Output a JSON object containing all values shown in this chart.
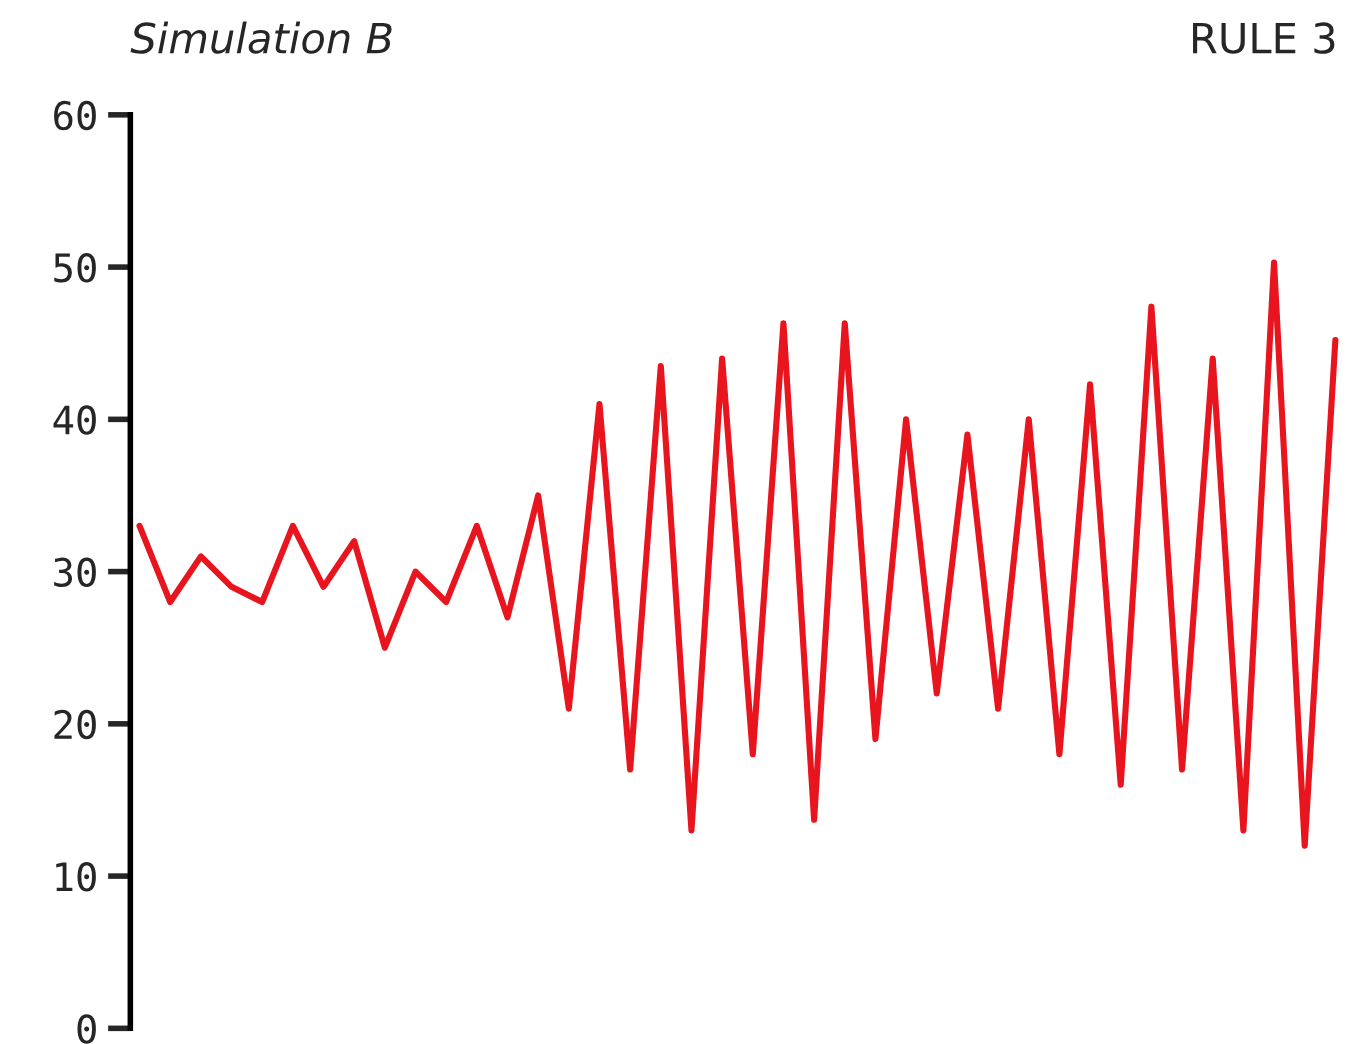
{
  "chart_data": {
    "type": "line",
    "title": "Simulation B",
    "subtitle": "RULE 3",
    "categories": [
      null,
      null,
      null,
      null,
      null,
      null,
      null,
      null,
      null,
      null,
      null,
      null,
      null,
      null,
      null,
      null,
      null,
      null,
      null,
      null,
      null,
      null,
      null,
      null,
      null,
      null,
      null,
      null,
      null,
      null,
      null,
      null,
      null,
      null,
      null,
      null,
      null,
      null,
      null,
      null
    ],
    "series": [
      {
        "color": "#e8141e",
        "values": [
          33,
          28,
          31,
          29,
          28,
          33,
          29,
          32,
          25,
          30,
          28,
          33,
          27,
          35,
          21,
          41,
          17,
          43.5,
          13,
          44,
          18,
          46.3,
          13.7,
          46.3,
          19,
          40,
          22,
          39,
          21,
          40,
          18,
          42.3,
          16,
          47.4,
          17,
          44,
          13,
          50.3,
          12,
          45.2
        ]
      }
    ],
    "ylim": [
      0,
      60
    ],
    "yticks": [
      0,
      10,
      20,
      30,
      40,
      50,
      60
    ],
    "tick_labels": "y",
    "grid": false,
    "marker": "none",
    "line_style": "solid"
  }
}
